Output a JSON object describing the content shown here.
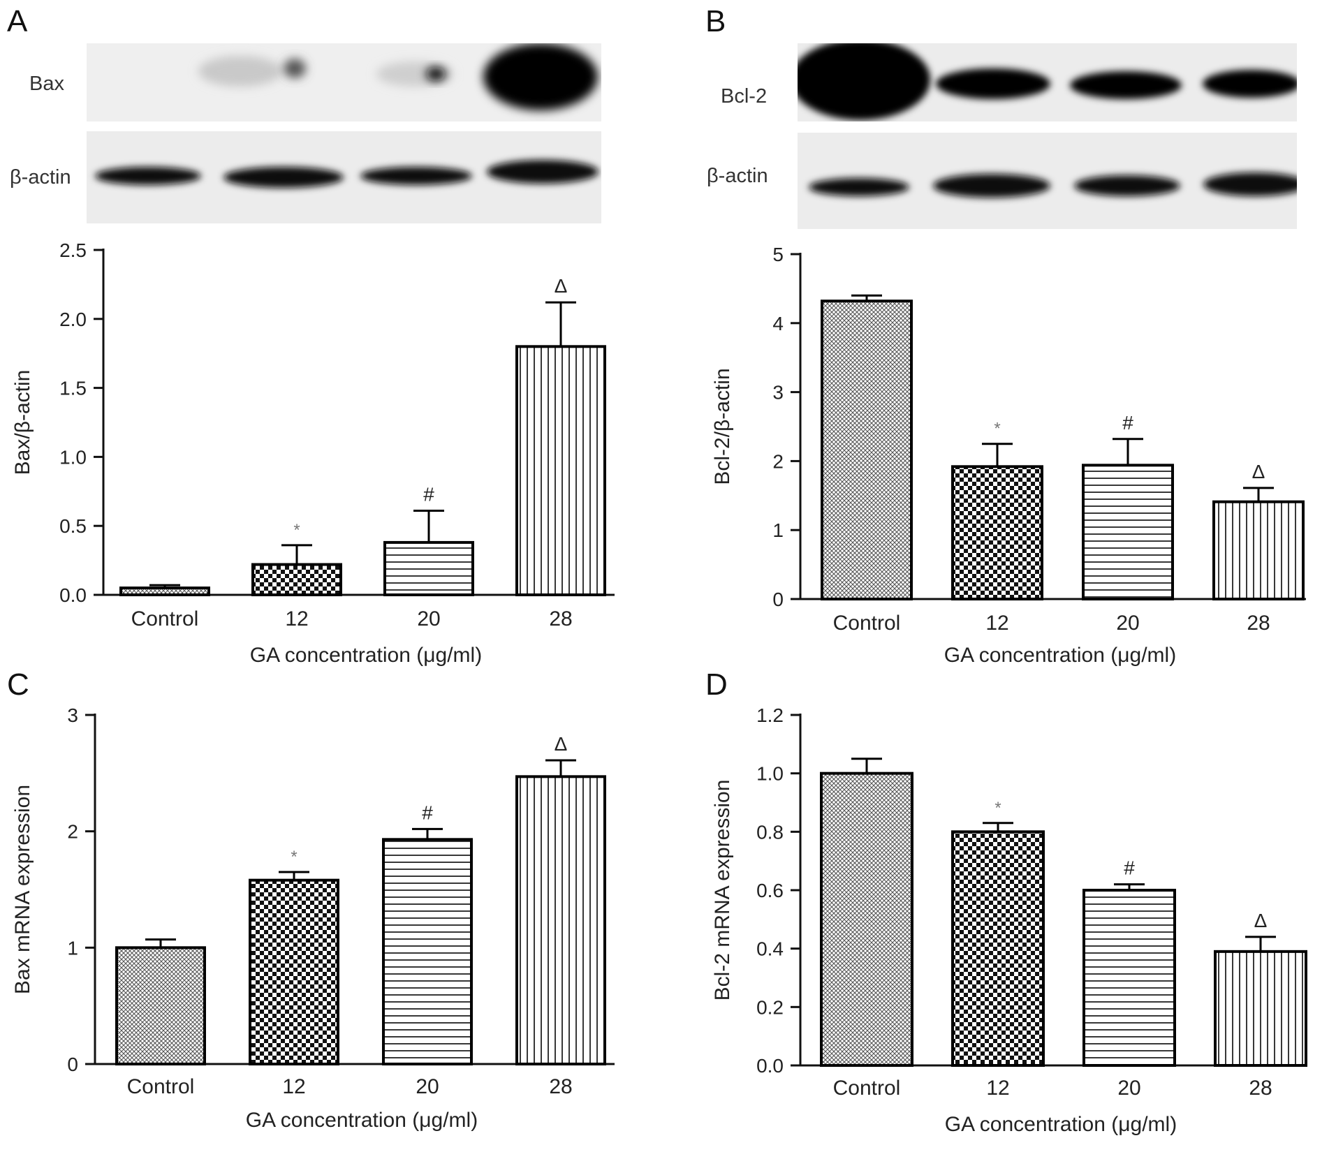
{
  "colors": {
    "axis": "#111111",
    "text": "#222222",
    "bar_stroke": "#000000",
    "blot_bg": "#ececec",
    "band": "#000000"
  },
  "blots": {
    "A": {
      "protein_label": "Bax",
      "actin_label": "β-actin"
    },
    "B": {
      "protein_label": "Bcl-2",
      "actin_label": "β-actin"
    }
  },
  "chart_data": [
    {
      "panel": "A",
      "type": "bar",
      "categories": [
        "Control",
        "12",
        "20",
        "28"
      ],
      "values": [
        0.05,
        0.22,
        0.38,
        1.8
      ],
      "errors": [
        0.02,
        0.14,
        0.23,
        0.32
      ],
      "annotations": [
        "",
        "*",
        "#",
        "Δ"
      ],
      "patterns": [
        "crosshatch",
        "checker",
        "hlines",
        "vlines"
      ],
      "ylim": [
        0,
        2.5
      ],
      "yticks": [
        "0.0",
        "0.5",
        "1.0",
        "1.5",
        "2.0",
        "2.5"
      ],
      "xlabel": "GA concentration (μg/ml)",
      "ylabel": "Bax/β-actin"
    },
    {
      "panel": "B",
      "type": "bar",
      "categories": [
        "Control",
        "12",
        "20",
        "28"
      ],
      "values": [
        4.32,
        1.92,
        1.94,
        1.41
      ],
      "errors": [
        0.08,
        0.33,
        0.38,
        0.2
      ],
      "annotations": [
        "",
        "*",
        "#",
        "Δ"
      ],
      "patterns": [
        "crosshatch",
        "checker",
        "hlines",
        "vlines"
      ],
      "ylim": [
        0,
        5
      ],
      "yticks": [
        "0",
        "1",
        "2",
        "3",
        "4",
        "5"
      ],
      "xlabel": "GA concentration (μg/ml)",
      "ylabel": "Bcl-2/β-actin"
    },
    {
      "panel": "C",
      "type": "bar",
      "categories": [
        "Control",
        "12",
        "20",
        "28"
      ],
      "values": [
        1.0,
        1.58,
        1.93,
        2.47
      ],
      "errors": [
        0.07,
        0.07,
        0.09,
        0.14
      ],
      "annotations": [
        "",
        "*",
        "#",
        "Δ"
      ],
      "patterns": [
        "crosshatch",
        "checker",
        "hlines",
        "vlines"
      ],
      "ylim": [
        0,
        3
      ],
      "yticks": [
        "0",
        "1",
        "2",
        "3"
      ],
      "xlabel": "GA concentration (μg/ml)",
      "ylabel": "Bax mRNA expression"
    },
    {
      "panel": "D",
      "type": "bar",
      "categories": [
        "Control",
        "12",
        "20",
        "28"
      ],
      "values": [
        1.0,
        0.8,
        0.6,
        0.39
      ],
      "errors": [
        0.05,
        0.03,
        0.02,
        0.05
      ],
      "annotations": [
        "",
        "*",
        "#",
        "Δ"
      ],
      "patterns": [
        "crosshatch",
        "checker",
        "hlines",
        "vlines"
      ],
      "ylim": [
        0,
        1.2
      ],
      "yticks": [
        "0.0",
        "0.2",
        "0.4",
        "0.6",
        "0.8",
        "1.0",
        "1.2"
      ],
      "xlabel": "GA concentration (μg/ml)",
      "ylabel": "Bcl-2 mRNA expression"
    }
  ]
}
